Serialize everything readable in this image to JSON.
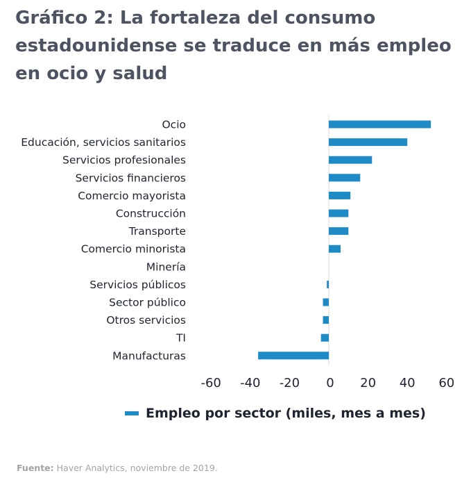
{
  "title": "Gráfico 2: La fortaleza del consumo estadounidense se traduce en más empleo en ocio y salud",
  "legend": {
    "label": "Empleo por sector (miles, mes a mes)",
    "color": "#1e8ac6"
  },
  "source": {
    "prefix": "Fuente:",
    "text": " Haver Analytics, noviembre de 2019."
  },
  "chart_data": {
    "type": "bar",
    "orientation": "horizontal",
    "title": "Gráfico 2: La fortaleza del consumo estadounidense se traduce en más empleo en ocio y salud",
    "xlabel": "",
    "ylabel": "",
    "xlim": [
      -60,
      60
    ],
    "xticks": [
      -60,
      -40,
      -20,
      0,
      20,
      40,
      60
    ],
    "grid": false,
    "legend_position": "bottom",
    "categories": [
      "Ocio",
      "Educación, servicios sanitarios",
      "Servicios profesionales",
      "Servicios financieros",
      "Comercio mayorista",
      "Construcción",
      "Transporte",
      "Comercio minorista",
      "Minería",
      "Servicios públicos",
      "Sector público",
      "Otros servicios",
      "TI",
      "Manufacturas"
    ],
    "series": [
      {
        "name": "Empleo por sector (miles, mes a mes)",
        "color": "#1e8ac6",
        "values": [
          52,
          40,
          22,
          16,
          11,
          10,
          10,
          6,
          0,
          -1,
          -3,
          -3,
          -4,
          -36
        ]
      }
    ]
  }
}
